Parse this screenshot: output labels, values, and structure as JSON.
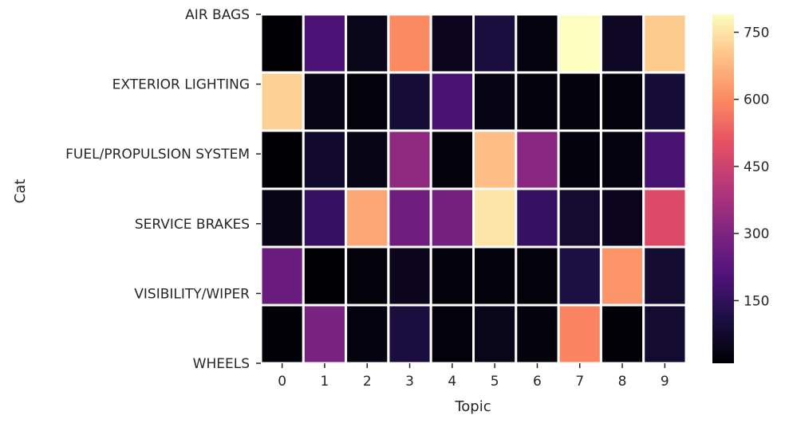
{
  "chart_data": {
    "type": "heatmap",
    "xlabel": "Topic",
    "ylabel": "Cat",
    "x_categories": [
      "0",
      "1",
      "2",
      "3",
      "4",
      "5",
      "6",
      "7",
      "8",
      "9"
    ],
    "y_categories": [
      "AIR BAGS",
      "EXTERIOR LIGHTING",
      "FUEL/PROPULSION SYSTEM",
      "SERVICE BRAKES",
      "VISIBILITY/WIPER",
      "WHEELS"
    ],
    "values": [
      [
        10,
        200,
        45,
        600,
        50,
        100,
        30,
        790,
        60,
        710
      ],
      [
        720,
        40,
        20,
        90,
        190,
        35,
        25,
        20,
        20,
        90
      ],
      [
        10,
        75,
        40,
        330,
        25,
        690,
        320,
        25,
        30,
        190
      ],
      [
        40,
        160,
        650,
        270,
        280,
        750,
        160,
        80,
        50,
        480
      ],
      [
        260,
        10,
        20,
        50,
        20,
        20,
        20,
        110,
        620,
        80
      ],
      [
        15,
        290,
        30,
        100,
        20,
        45,
        25,
        590,
        15,
        80
      ]
    ],
    "colorbar": {
      "ticks": [
        150,
        300,
        450,
        600,
        750
      ],
      "vmin": 10,
      "vmax": 790,
      "colormap": "magma"
    },
    "grid": true,
    "cell_border_color": "#ffffff"
  }
}
